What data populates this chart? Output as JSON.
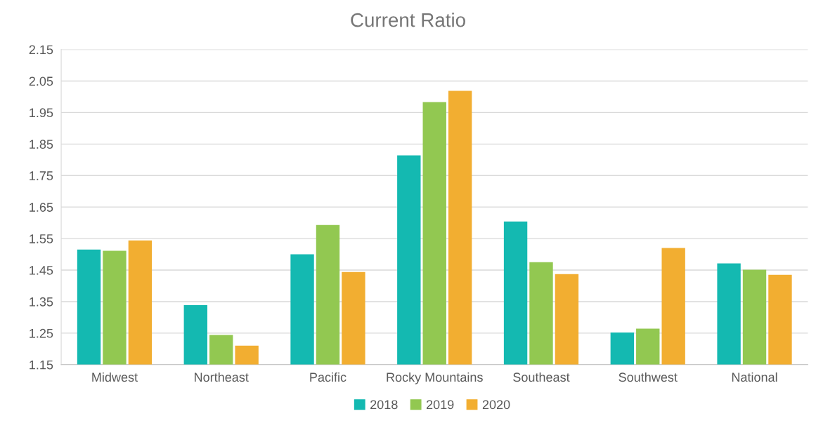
{
  "chart_data": {
    "type": "bar",
    "title": "Current Ratio",
    "categories": [
      "Midwest",
      "Northeast",
      "Pacific",
      "Rocky Mountains",
      "Southeast",
      "Southwest",
      "National"
    ],
    "series": [
      {
        "name": "2018",
        "color": "#14b9b1",
        "values": [
          1.515,
          1.339,
          1.5,
          1.814,
          1.604,
          1.252,
          1.471
        ]
      },
      {
        "name": "2019",
        "color": "#92c851",
        "values": [
          1.511,
          1.244,
          1.593,
          1.983,
          1.475,
          1.264,
          1.451
        ]
      },
      {
        "name": "2020",
        "color": "#f2ae31",
        "values": [
          1.544,
          1.21,
          1.444,
          2.019,
          1.437,
          1.52,
          1.435
        ]
      }
    ],
    "ylim": [
      1.15,
      2.15
    ],
    "yticks": [
      1.15,
      1.25,
      1.35,
      1.45,
      1.55,
      1.65,
      1.75,
      1.85,
      1.95,
      2.05,
      2.15
    ],
    "grid": "y",
    "legend": "bottom"
  }
}
